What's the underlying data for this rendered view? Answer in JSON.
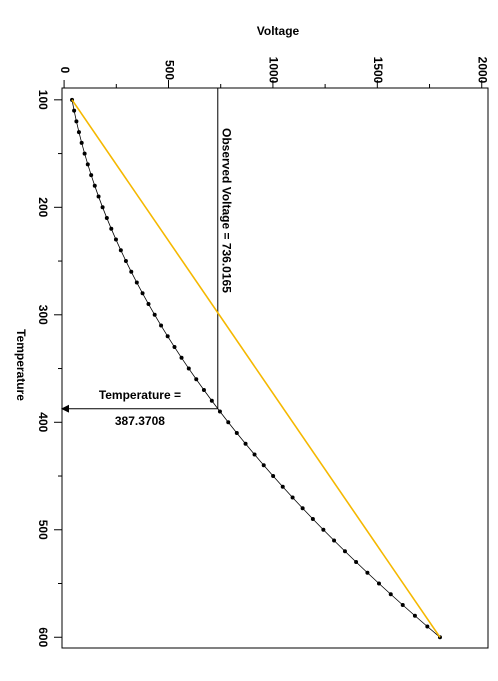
{
  "chart_data": {
    "type": "line",
    "x_label": "Voltage",
    "y_label": "Temperature",
    "x": [
      100,
      110,
      120,
      130,
      140,
      150,
      160,
      170,
      180,
      190,
      200,
      210,
      220,
      230,
      240,
      250,
      260,
      270,
      280,
      290,
      300,
      310,
      320,
      330,
      340,
      350,
      360,
      370,
      380,
      390,
      400,
      410,
      420,
      430,
      440,
      450,
      460,
      470,
      480,
      490,
      500,
      510,
      520,
      530,
      540,
      550,
      560,
      570,
      580,
      590,
      600
    ],
    "series": [
      {
        "color": "#000000",
        "markers": true,
        "values": [
          38.0,
          48.0,
          59.0,
          71.1,
          84.2,
          98.3,
          113.5,
          129.7,
          146.9,
          165.1,
          184.4,
          204.7,
          226.0,
          248.4,
          271.8,
          296.2,
          321.7,
          348.2,
          375.7,
          404.2,
          433.8,
          464.4,
          496.0,
          528.7,
          562.4,
          597.1,
          632.9,
          669.7,
          707.5,
          746.3,
          786.2,
          827.1,
          869.0,
          912.0,
          956.0,
          1001.0,
          1047.1,
          1094.2,
          1142.3,
          1191.4,
          1241.6,
          1292.8,
          1345.0,
          1398.3,
          1452.6,
          1507.9,
          1564.3,
          1621.7,
          1680.1,
          1739.5,
          1800.0
        ]
      },
      {
        "color": "#f5b800",
        "markers": false,
        "x": [
          100,
          600
        ],
        "values": [
          38.0,
          1800.0
        ]
      }
    ],
    "voltage_lim": [
      -10,
      2030
    ],
    "voltage_ticks": [
      0,
      500,
      1000,
      1500,
      2000
    ],
    "voltage_minor_ticks": [
      250,
      750,
      1250,
      1750
    ],
    "temperature_lim": [
      89,
      610
    ],
    "temperature_ticks": [
      100,
      200,
      300,
      400,
      500,
      600
    ],
    "temperature_minor_ticks": [
      150,
      250,
      350,
      450,
      550
    ],
    "annotations": [
      {
        "text": "Observed Voltage = 736.0165",
        "value": 736.0165
      },
      {
        "lines": [
          "Temperature =",
          "387.3708"
        ],
        "value": 387.3708
      }
    ]
  }
}
